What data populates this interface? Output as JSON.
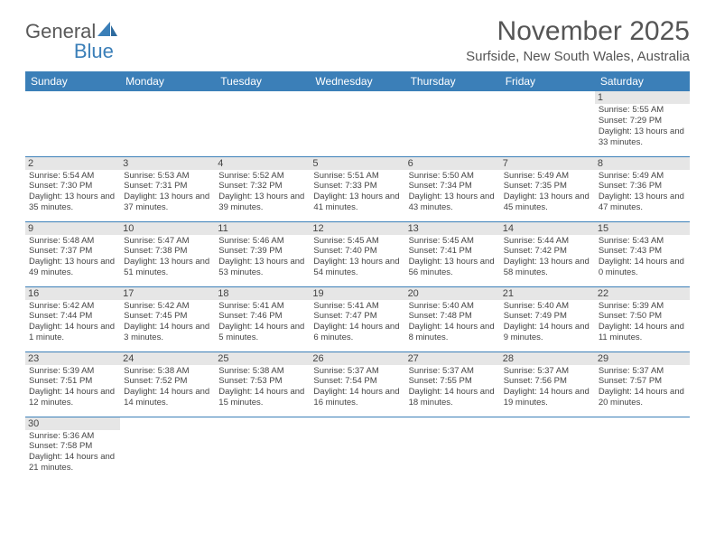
{
  "brand": {
    "name_a": "General",
    "name_b": "Blue"
  },
  "header": {
    "month_title": "November 2025",
    "location": "Surfside, New South Wales, Australia"
  },
  "colors": {
    "header_bg": "#3b7fb8",
    "header_text": "#ffffff",
    "daynum_bg": "#e6e6e6",
    "border": "#3b7fb8",
    "text": "#444444"
  },
  "weekdays": [
    "Sunday",
    "Monday",
    "Tuesday",
    "Wednesday",
    "Thursday",
    "Friday",
    "Saturday"
  ],
  "weeks": [
    [
      {
        "day": "",
        "sunrise": "",
        "sunset": "",
        "daylight": ""
      },
      {
        "day": "",
        "sunrise": "",
        "sunset": "",
        "daylight": ""
      },
      {
        "day": "",
        "sunrise": "",
        "sunset": "",
        "daylight": ""
      },
      {
        "day": "",
        "sunrise": "",
        "sunset": "",
        "daylight": ""
      },
      {
        "day": "",
        "sunrise": "",
        "sunset": "",
        "daylight": ""
      },
      {
        "day": "",
        "sunrise": "",
        "sunset": "",
        "daylight": ""
      },
      {
        "day": "1",
        "sunrise": "Sunrise: 5:55 AM",
        "sunset": "Sunset: 7:29 PM",
        "daylight": "Daylight: 13 hours and 33 minutes."
      }
    ],
    [
      {
        "day": "2",
        "sunrise": "Sunrise: 5:54 AM",
        "sunset": "Sunset: 7:30 PM",
        "daylight": "Daylight: 13 hours and 35 minutes."
      },
      {
        "day": "3",
        "sunrise": "Sunrise: 5:53 AM",
        "sunset": "Sunset: 7:31 PM",
        "daylight": "Daylight: 13 hours and 37 minutes."
      },
      {
        "day": "4",
        "sunrise": "Sunrise: 5:52 AM",
        "sunset": "Sunset: 7:32 PM",
        "daylight": "Daylight: 13 hours and 39 minutes."
      },
      {
        "day": "5",
        "sunrise": "Sunrise: 5:51 AM",
        "sunset": "Sunset: 7:33 PM",
        "daylight": "Daylight: 13 hours and 41 minutes."
      },
      {
        "day": "6",
        "sunrise": "Sunrise: 5:50 AM",
        "sunset": "Sunset: 7:34 PM",
        "daylight": "Daylight: 13 hours and 43 minutes."
      },
      {
        "day": "7",
        "sunrise": "Sunrise: 5:49 AM",
        "sunset": "Sunset: 7:35 PM",
        "daylight": "Daylight: 13 hours and 45 minutes."
      },
      {
        "day": "8",
        "sunrise": "Sunrise: 5:49 AM",
        "sunset": "Sunset: 7:36 PM",
        "daylight": "Daylight: 13 hours and 47 minutes."
      }
    ],
    [
      {
        "day": "9",
        "sunrise": "Sunrise: 5:48 AM",
        "sunset": "Sunset: 7:37 PM",
        "daylight": "Daylight: 13 hours and 49 minutes."
      },
      {
        "day": "10",
        "sunrise": "Sunrise: 5:47 AM",
        "sunset": "Sunset: 7:38 PM",
        "daylight": "Daylight: 13 hours and 51 minutes."
      },
      {
        "day": "11",
        "sunrise": "Sunrise: 5:46 AM",
        "sunset": "Sunset: 7:39 PM",
        "daylight": "Daylight: 13 hours and 53 minutes."
      },
      {
        "day": "12",
        "sunrise": "Sunrise: 5:45 AM",
        "sunset": "Sunset: 7:40 PM",
        "daylight": "Daylight: 13 hours and 54 minutes."
      },
      {
        "day": "13",
        "sunrise": "Sunrise: 5:45 AM",
        "sunset": "Sunset: 7:41 PM",
        "daylight": "Daylight: 13 hours and 56 minutes."
      },
      {
        "day": "14",
        "sunrise": "Sunrise: 5:44 AM",
        "sunset": "Sunset: 7:42 PM",
        "daylight": "Daylight: 13 hours and 58 minutes."
      },
      {
        "day": "15",
        "sunrise": "Sunrise: 5:43 AM",
        "sunset": "Sunset: 7:43 PM",
        "daylight": "Daylight: 14 hours and 0 minutes."
      }
    ],
    [
      {
        "day": "16",
        "sunrise": "Sunrise: 5:42 AM",
        "sunset": "Sunset: 7:44 PM",
        "daylight": "Daylight: 14 hours and 1 minute."
      },
      {
        "day": "17",
        "sunrise": "Sunrise: 5:42 AM",
        "sunset": "Sunset: 7:45 PM",
        "daylight": "Daylight: 14 hours and 3 minutes."
      },
      {
        "day": "18",
        "sunrise": "Sunrise: 5:41 AM",
        "sunset": "Sunset: 7:46 PM",
        "daylight": "Daylight: 14 hours and 5 minutes."
      },
      {
        "day": "19",
        "sunrise": "Sunrise: 5:41 AM",
        "sunset": "Sunset: 7:47 PM",
        "daylight": "Daylight: 14 hours and 6 minutes."
      },
      {
        "day": "20",
        "sunrise": "Sunrise: 5:40 AM",
        "sunset": "Sunset: 7:48 PM",
        "daylight": "Daylight: 14 hours and 8 minutes."
      },
      {
        "day": "21",
        "sunrise": "Sunrise: 5:40 AM",
        "sunset": "Sunset: 7:49 PM",
        "daylight": "Daylight: 14 hours and 9 minutes."
      },
      {
        "day": "22",
        "sunrise": "Sunrise: 5:39 AM",
        "sunset": "Sunset: 7:50 PM",
        "daylight": "Daylight: 14 hours and 11 minutes."
      }
    ],
    [
      {
        "day": "23",
        "sunrise": "Sunrise: 5:39 AM",
        "sunset": "Sunset: 7:51 PM",
        "daylight": "Daylight: 14 hours and 12 minutes."
      },
      {
        "day": "24",
        "sunrise": "Sunrise: 5:38 AM",
        "sunset": "Sunset: 7:52 PM",
        "daylight": "Daylight: 14 hours and 14 minutes."
      },
      {
        "day": "25",
        "sunrise": "Sunrise: 5:38 AM",
        "sunset": "Sunset: 7:53 PM",
        "daylight": "Daylight: 14 hours and 15 minutes."
      },
      {
        "day": "26",
        "sunrise": "Sunrise: 5:37 AM",
        "sunset": "Sunset: 7:54 PM",
        "daylight": "Daylight: 14 hours and 16 minutes."
      },
      {
        "day": "27",
        "sunrise": "Sunrise: 5:37 AM",
        "sunset": "Sunset: 7:55 PM",
        "daylight": "Daylight: 14 hours and 18 minutes."
      },
      {
        "day": "28",
        "sunrise": "Sunrise: 5:37 AM",
        "sunset": "Sunset: 7:56 PM",
        "daylight": "Daylight: 14 hours and 19 minutes."
      },
      {
        "day": "29",
        "sunrise": "Sunrise: 5:37 AM",
        "sunset": "Sunset: 7:57 PM",
        "daylight": "Daylight: 14 hours and 20 minutes."
      }
    ],
    [
      {
        "day": "30",
        "sunrise": "Sunrise: 5:36 AM",
        "sunset": "Sunset: 7:58 PM",
        "daylight": "Daylight: 14 hours and 21 minutes."
      },
      {
        "day": "",
        "sunrise": "",
        "sunset": "",
        "daylight": ""
      },
      {
        "day": "",
        "sunrise": "",
        "sunset": "",
        "daylight": ""
      },
      {
        "day": "",
        "sunrise": "",
        "sunset": "",
        "daylight": ""
      },
      {
        "day": "",
        "sunrise": "",
        "sunset": "",
        "daylight": ""
      },
      {
        "day": "",
        "sunrise": "",
        "sunset": "",
        "daylight": ""
      },
      {
        "day": "",
        "sunrise": "",
        "sunset": "",
        "daylight": ""
      }
    ]
  ]
}
